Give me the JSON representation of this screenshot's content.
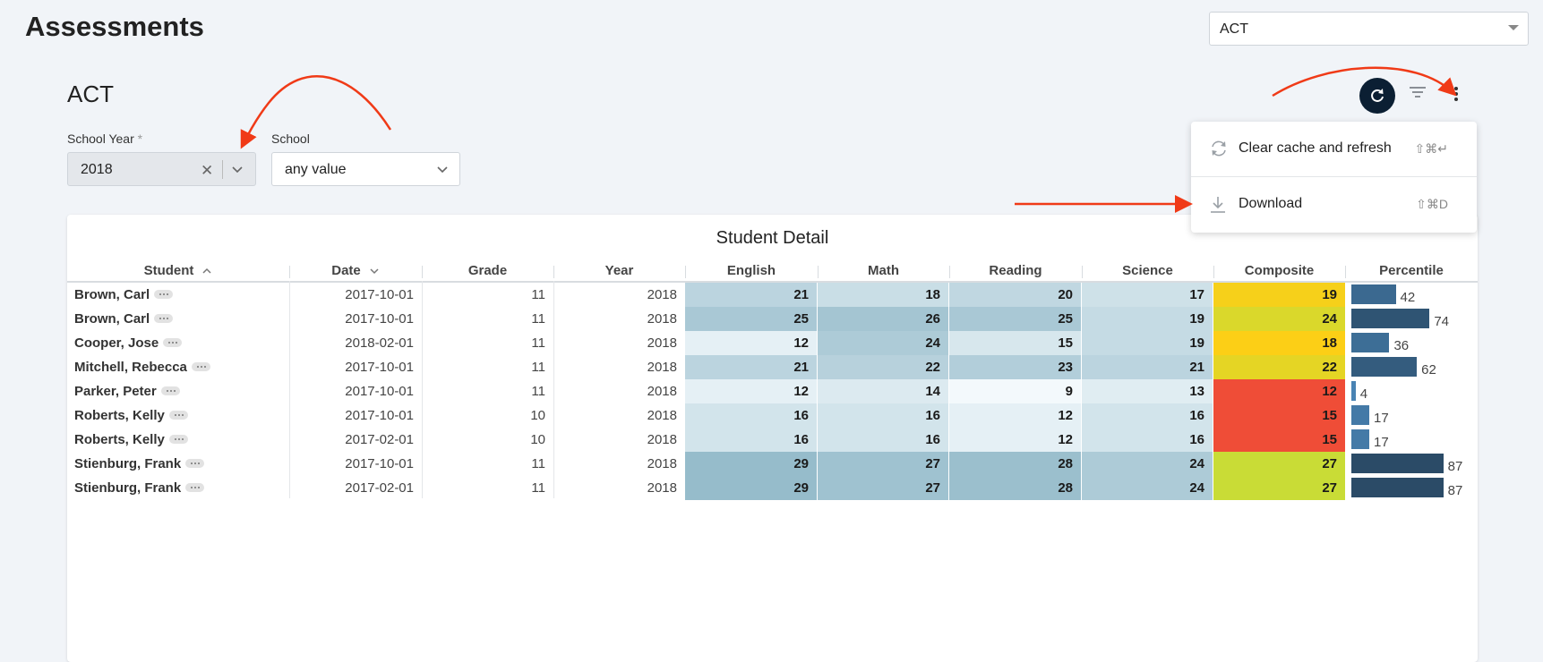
{
  "page_title": "Assessments",
  "assessment_select": {
    "value": "ACT"
  },
  "dashboard": {
    "title": "ACT",
    "filters": {
      "school_year": {
        "label": "School Year",
        "required_marker": "*",
        "value": "2018"
      },
      "school": {
        "label": "School",
        "value": "any value"
      }
    }
  },
  "menu": {
    "items": [
      {
        "label": "Clear cache and refresh",
        "shortcut": "⇧⌘↵",
        "icon": "refresh-icon"
      },
      {
        "label": "Download",
        "shortcut": "⇧⌘D",
        "icon": "download-icon"
      }
    ]
  },
  "table": {
    "title": "Student Detail",
    "columns": [
      "Student",
      "Date",
      "Grade",
      "Year",
      "English",
      "Math",
      "Reading",
      "Science",
      "Composite",
      "Percentile"
    ],
    "sort": {
      "Student": "asc",
      "Date": "desc"
    },
    "rows": [
      {
        "student": "Brown, Carl",
        "date": "2017-10-01",
        "grade": "11",
        "year": "2018",
        "english": "21",
        "math": "18",
        "reading": "20",
        "science": "17",
        "composite": "19",
        "percentile": "42"
      },
      {
        "student": "Brown, Carl",
        "date": "2017-10-01",
        "grade": "11",
        "year": "2018",
        "english": "25",
        "math": "26",
        "reading": "25",
        "science": "19",
        "composite": "24",
        "percentile": "74"
      },
      {
        "student": "Cooper, Jose",
        "date": "2018-02-01",
        "grade": "11",
        "year": "2018",
        "english": "12",
        "math": "24",
        "reading": "15",
        "science": "19",
        "composite": "18",
        "percentile": "36"
      },
      {
        "student": "Mitchell, Rebecca",
        "date": "2017-10-01",
        "grade": "11",
        "year": "2018",
        "english": "21",
        "math": "22",
        "reading": "23",
        "science": "21",
        "composite": "22",
        "percentile": "62"
      },
      {
        "student": "Parker, Peter",
        "date": "2017-10-01",
        "grade": "11",
        "year": "2018",
        "english": "12",
        "math": "14",
        "reading": "9",
        "science": "13",
        "composite": "12",
        "percentile": "4"
      },
      {
        "student": "Roberts, Kelly",
        "date": "2017-10-01",
        "grade": "10",
        "year": "2018",
        "english": "16",
        "math": "16",
        "reading": "12",
        "science": "16",
        "composite": "15",
        "percentile": "17"
      },
      {
        "student": "Roberts, Kelly",
        "date": "2017-02-01",
        "grade": "10",
        "year": "2018",
        "english": "16",
        "math": "16",
        "reading": "12",
        "science": "16",
        "composite": "15",
        "percentile": "17"
      },
      {
        "student": "Stienburg, Frank",
        "date": "2017-10-01",
        "grade": "11",
        "year": "2018",
        "english": "29",
        "math": "27",
        "reading": "28",
        "science": "24",
        "composite": "27",
        "percentile": "87"
      },
      {
        "student": "Stienburg, Frank",
        "date": "2017-02-01",
        "grade": "11",
        "year": "2018",
        "english": "29",
        "math": "27",
        "reading": "28",
        "science": "24",
        "composite": "27",
        "percentile": "87"
      }
    ]
  },
  "colors": {
    "annotation_arrow": "#f03a17",
    "refresh_button": "#0b1f33",
    "composite_scale": {
      "low": "#ef4d37",
      "mid": "#fccf16",
      "high": "#c9dc36"
    },
    "score_scale": {
      "low": "#f3f9fc",
      "high": "#96bccb"
    },
    "percentile_scale": {
      "low": "#4a86b7",
      "high": "#26425b"
    }
  }
}
